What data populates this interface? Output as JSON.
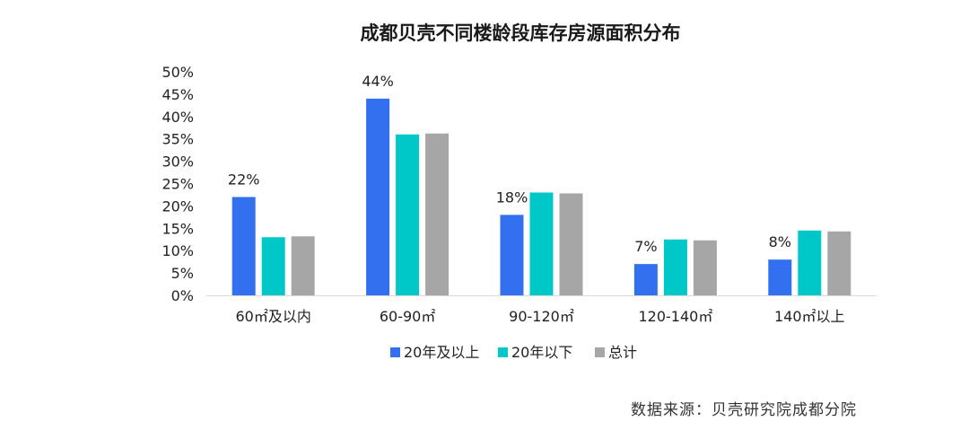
{
  "chart_data": {
    "type": "bar",
    "title": "成都贝壳不同楼龄段库存房源面积分布",
    "categories": [
      "60㎡及以内",
      "60-90㎡",
      "90-120㎡",
      "120-140㎡",
      "140㎡以上"
    ],
    "series": [
      {
        "name": "20年及以上",
        "values": [
          22,
          44,
          18,
          7,
          8
        ],
        "color": "#3370f0"
      },
      {
        "name": "20年以下",
        "values": [
          13,
          36,
          23,
          12.5,
          14.5
        ],
        "color": "#00c8c8"
      },
      {
        "name": "总计",
        "values": [
          13.2,
          36.2,
          22.8,
          12.3,
          14.3
        ],
        "color": "#a6a6a6"
      }
    ],
    "data_labels": [
      "22%",
      "44%",
      "18%",
      "7%",
      "8%"
    ],
    "yticks": [
      "0%",
      "5%",
      "10%",
      "15%",
      "20%",
      "25%",
      "30%",
      "35%",
      "40%",
      "45%",
      "50%"
    ],
    "ylim": [
      0,
      50
    ],
    "xlabel": "",
    "ylabel": "",
    "grid": false,
    "legend_position": "bottom"
  },
  "source": "数据来源：贝壳研究院成都分院"
}
